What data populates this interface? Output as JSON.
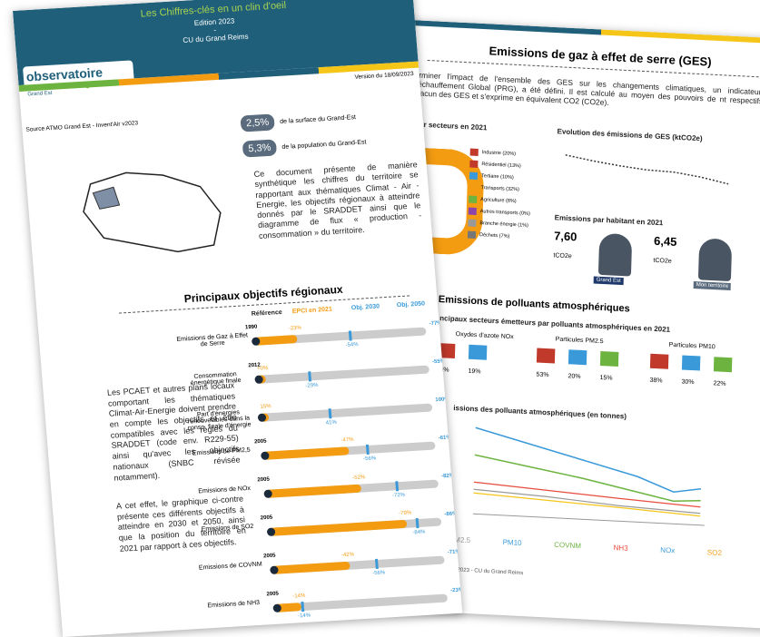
{
  "back_page": {
    "title": "Emissions de gaz à effet de serre (GES)",
    "intro": "terminer l'impact de l'ensemble des GES sur les changements climatiques, un indicateur, le Réchauffement Global (PRG), a été défini. Il est calculé au moyen des pouvoirs de nt respectifs de chacun des GES et s'exprime en équivalent CO2 (CO2e).",
    "sectors_title": "s par secteurs en 2021",
    "sectors": [
      "Industrie (20%)",
      "Résidentiel (13%)",
      "Tertiaire (10%)",
      "Transports (32%)",
      "Agriculture (8%)",
      "Autres transports (0%)",
      "Branche énergie (1%)",
      "Déchets (7%)"
    ],
    "evolution_title": "Evolution des émissions de GES (ktCO2e)",
    "per_capita_title": "Emissions par habitant en 2021",
    "per_capita": [
      {
        "value": "7,60",
        "unit": "tCO2e",
        "label": "Grand Est"
      },
      {
        "value": "6,45",
        "unit": "tCO2e",
        "label": "Mon territoire"
      }
    ],
    "pollutants_title": "Emissions de polluants atmosphériques",
    "pollutants_subtitle": "ncipaux secteurs émetteurs par polluants atmosphériques en 2021",
    "pollutant_groups": [
      {
        "name": "Oxydes d'azote NOx",
        "shares": [
          "26%",
          "19%"
        ]
      },
      {
        "name": "Particules PM2.5",
        "shares": [
          "53%",
          "20%",
          "15%"
        ]
      },
      {
        "name": "Particules PM10",
        "shares": [
          "38%",
          "30%",
          "22%"
        ]
      }
    ],
    "trend_title": "issions des polluants atmosphériques (en tonnes)",
    "trend_legend": [
      "PM2.5",
      "PM10",
      "COVNM",
      "NH3",
      "NOx",
      "SO2"
    ],
    "footer": "ation 2023 - CU du Grand Reims"
  },
  "front_page": {
    "title": "Les Chiffres-clés en un clin d'oeil",
    "edition": "Edition 2023",
    "dash": "-",
    "territory": "CU du Grand Reims",
    "logo": [
      "observatoire",
      "climat · air · énergie",
      "Grand Est"
    ],
    "version": "Version du 18/09/2023",
    "source": "Source ATMO Grand Est - Invent'Air v2023",
    "stats": [
      {
        "value": "2,5%",
        "label": "de la surface du Grand-Est"
      },
      {
        "value": "5,3%",
        "label": "de la population du Grand-Est"
      }
    ],
    "description": "Ce document présente de manière synthétique les chiffres du territoire se rapportant aux thématiques Climat - Air - Energie, les objectifs régionaux à atteindre donnés par le SRADDET ainsi que le diagramme de flux « production - consommation » du territoire.",
    "objectives_title": "Principaux objectifs régionaux",
    "legend": [
      "Référence",
      "EPCI en 2021",
      "Obj. 2030",
      "Obj. 2050"
    ],
    "objectives": [
      {
        "label": "Emissions de Gaz à Effet de Serre",
        "ref": "1990",
        "epci": "-23%",
        "o2030": "-54%",
        "o2050": "-77%"
      },
      {
        "label": "Consommation énergétique finale",
        "ref": "2012",
        "epci": "+0%",
        "o2030": "-29%",
        "o2050": "-55%"
      },
      {
        "label": "Part d'énergies renouvelables dans la conso. finale d'énergie",
        "ref": "",
        "epci": "15%",
        "o2030": "41%",
        "o2050": "100%"
      },
      {
        "label": "Emissions de PM2,5",
        "ref": "2005",
        "epci": "-47%",
        "o2030": "-56%",
        "o2050": "-61%"
      },
      {
        "label": "Emissions de NOx",
        "ref": "2005",
        "epci": "-52%",
        "o2030": "-72%",
        "o2050": "-82%"
      },
      {
        "label": "Emissions de SO2",
        "ref": "2005",
        "epci": "-79%",
        "o2030": "-84%",
        "o2050": "-86%"
      },
      {
        "label": "Emissions de COVNM",
        "ref": "2005",
        "epci": "-42%",
        "o2030": "-56%",
        "o2050": "-71%"
      },
      {
        "label": "Emissions de NH3",
        "ref": "2005",
        "epci": "-14%",
        "o2030": "-14%",
        "o2050": "-23%"
      }
    ],
    "text1": "Les PCAET et autres plans locaux comportant les thématiques Climat-Air-Energie doivent prendre en compte les objectifs et être compatibles avec les règles du SRADDET (code env. R229-55) ainsi qu'avec les objectifs nationaux (SNBC révisée notamment).",
    "text2": "A cet effet, le graphique ci-contre présente ces différents objectifs à atteindre en 2030 et 2050, ainsi que la position du territoire en 2021 par rapport à ces objectifs."
  }
}
